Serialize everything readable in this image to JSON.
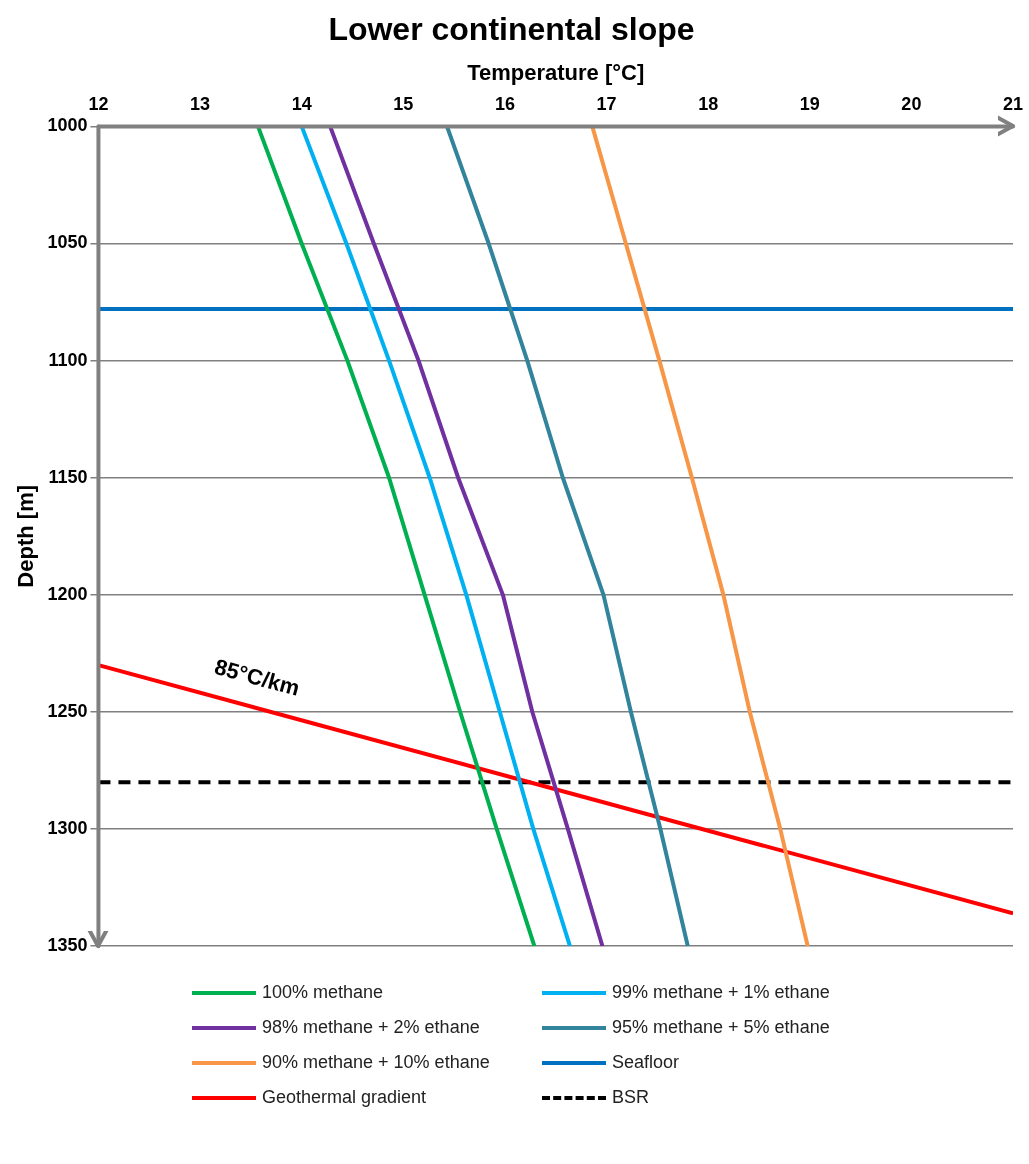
{
  "chart_data": {
    "type": "line",
    "title": "Lower continental slope",
    "xlabel": "Temperature [°C]",
    "ylabel": "Depth [m]",
    "xlim": [
      12,
      21
    ],
    "xticks": [
      12,
      13,
      14,
      15,
      16,
      17,
      18,
      19,
      20,
      21
    ],
    "ylim": [
      1350,
      1000
    ],
    "yticks": [
      1000,
      1050,
      1100,
      1150,
      1200,
      1250,
      1300,
      1350
    ],
    "grid": "y",
    "legend": "bottom",
    "marker": "none",
    "line_style": "solid",
    "series": [
      {
        "name": "100% methane",
        "color": "#00b050",
        "x": [
          13.57,
          14.0,
          14.45,
          14.86,
          15.21,
          15.56,
          15.92,
          16.29
        ],
        "values": [
          1000,
          1050,
          1100,
          1150,
          1200,
          1250,
          1300,
          1350
        ]
      },
      {
        "name": "99% methane + 1% ethane",
        "color": "#00b0f0",
        "x": [
          14.0,
          14.44,
          14.86,
          15.26,
          15.62,
          15.95,
          16.28,
          16.64
        ],
        "values": [
          1000,
          1050,
          1100,
          1150,
          1200,
          1250,
          1300,
          1350
        ]
      },
      {
        "name": "98% methane + 2% ethane",
        "color": "#7030a0",
        "x": [
          14.28,
          14.71,
          15.15,
          15.54,
          15.98,
          16.27,
          16.62,
          16.96
        ],
        "values": [
          1000,
          1050,
          1100,
          1150,
          1200,
          1250,
          1300,
          1350
        ]
      },
      {
        "name": "95% methane + 5% ethane",
        "color": "#31849b",
        "x": [
          15.43,
          15.84,
          16.22,
          16.57,
          16.97,
          17.24,
          17.53,
          17.8
        ],
        "values": [
          1000,
          1050,
          1100,
          1150,
          1200,
          1250,
          1300,
          1350
        ]
      },
      {
        "name": "90% methane + 10% ethane",
        "color": "#f79646",
        "x": [
          16.86,
          17.19,
          17.52,
          17.84,
          18.15,
          18.41,
          18.71,
          18.98
        ],
        "values": [
          1000,
          1050,
          1100,
          1150,
          1200,
          1250,
          1300,
          1350
        ]
      },
      {
        "name": "Geothermal gradient",
        "color": "#ff0000",
        "x": [
          12,
          21
        ],
        "values": [
          1230,
          1336
        ]
      }
    ],
    "ref_lines": [
      {
        "axis": "y",
        "value": 1078,
        "label": "Seafloor",
        "color": "#0070c0",
        "line_style": "solid"
      },
      {
        "axis": "y",
        "value": 1280,
        "label": "BSR",
        "color": "#000000",
        "line_style": "dashed"
      }
    ],
    "annotations": [
      "85°C/km"
    ]
  }
}
